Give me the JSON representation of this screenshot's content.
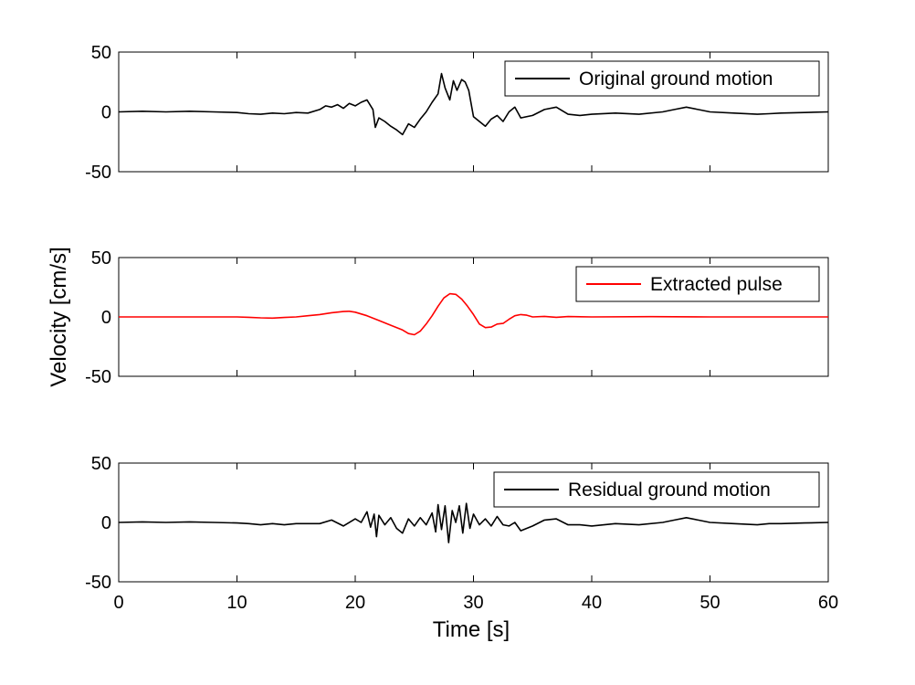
{
  "chart_data": [
    {
      "type": "line",
      "ylim": [
        -50,
        50
      ],
      "xlim": [
        0,
        60
      ],
      "xticks": [
        0,
        10,
        20,
        30,
        40,
        50,
        60
      ],
      "yticks": [
        -50,
        0,
        50
      ],
      "ytick_labels": [
        "-50",
        "0",
        "50"
      ],
      "legend_position": "top-right",
      "series": [
        {
          "name": "Original ground motion",
          "color": "#000000",
          "x": [
            0,
            2,
            4,
            6,
            8,
            10,
            11,
            12,
            13,
            14,
            15,
            16,
            17,
            17.5,
            18,
            18.5,
            19,
            19.5,
            20,
            20.5,
            21,
            21.5,
            21.7,
            22,
            22.5,
            23,
            23.5,
            24,
            24.5,
            25,
            25.5,
            26,
            26.5,
            27,
            27.3,
            27.6,
            28,
            28.3,
            28.6,
            29,
            29.3,
            29.6,
            30,
            30.5,
            31,
            31.5,
            32,
            32.5,
            33,
            33.5,
            34,
            35,
            36,
            37,
            38,
            39,
            40,
            42,
            44,
            46,
            47,
            48,
            49,
            50,
            52,
            54,
            55,
            56,
            58,
            60
          ],
          "y": [
            0,
            0.5,
            0,
            0.5,
            0,
            -0.5,
            -1.5,
            -2,
            -1,
            -1.5,
            -0.5,
            -1,
            2,
            5,
            4,
            6,
            3,
            7,
            5,
            8,
            10,
            2,
            -13,
            -5,
            -8,
            -12,
            -15,
            -19,
            -10,
            -13,
            -6,
            0,
            8,
            15,
            32,
            20,
            10,
            26,
            18,
            27,
            25,
            18,
            -4,
            -8,
            -12,
            -6,
            -3,
            -8,
            0,
            4,
            -5,
            -3,
            2,
            4,
            -2,
            -3,
            -2,
            -1,
            -2,
            0,
            2,
            4,
            2,
            0,
            -1,
            -2,
            -1.5,
            -1,
            -0.5,
            0
          ]
        }
      ]
    },
    {
      "type": "line",
      "ylim": [
        -50,
        50
      ],
      "xlim": [
        0,
        60
      ],
      "xticks": [
        0,
        10,
        20,
        30,
        40,
        50,
        60
      ],
      "yticks": [
        -50,
        0,
        50
      ],
      "ytick_labels": [
        "-50",
        "0",
        "50"
      ],
      "legend_position": "top-right",
      "series": [
        {
          "name": "Extracted pulse",
          "color": "#ff0000",
          "x": [
            0,
            5,
            10,
            11,
            12,
            13,
            14,
            15,
            16,
            17,
            18,
            19,
            19.5,
            20,
            21,
            22,
            23,
            24,
            24.5,
            25,
            25.5,
            26,
            26.5,
            27,
            27.5,
            28,
            28.5,
            29,
            29.5,
            30,
            30.5,
            31,
            31.5,
            32,
            32.5,
            33,
            33.5,
            34,
            34.5,
            35,
            36,
            37,
            38,
            40,
            45,
            50,
            55,
            60
          ],
          "y": [
            0,
            0,
            0,
            -0.3,
            -0.8,
            -1,
            -0.5,
            0,
            1,
            2,
            3.5,
            4.5,
            4.8,
            4,
            1,
            -3,
            -7,
            -11,
            -14,
            -15,
            -12,
            -6,
            1,
            9,
            16,
            19.5,
            19,
            15,
            9,
            2,
            -6,
            -9,
            -8.5,
            -6,
            -5.5,
            -2,
            1,
            2,
            1.5,
            0,
            0.5,
            -0.3,
            0.3,
            0,
            0.2,
            0,
            0,
            0
          ]
        }
      ]
    },
    {
      "type": "line",
      "ylim": [
        -50,
        50
      ],
      "xlim": [
        0,
        60
      ],
      "xticks": [
        0,
        10,
        20,
        30,
        40,
        50,
        60
      ],
      "xtick_labels": [
        "0",
        "10",
        "20",
        "30",
        "40",
        "50",
        "60"
      ],
      "yticks": [
        -50,
        0,
        50
      ],
      "ytick_labels": [
        "-50",
        "0",
        "50"
      ],
      "legend_position": "top-right",
      "series": [
        {
          "name": "Residual ground motion",
          "color": "#000000",
          "x": [
            0,
            2,
            4,
            6,
            8,
            10,
            11,
            12,
            13,
            14,
            15,
            16,
            17,
            18,
            19,
            20,
            20.5,
            21,
            21.3,
            21.6,
            21.8,
            22,
            22.5,
            23,
            23.5,
            24,
            24.5,
            25,
            25.5,
            26,
            26.5,
            26.8,
            27,
            27.3,
            27.6,
            27.9,
            28.2,
            28.5,
            28.8,
            29.1,
            29.4,
            29.7,
            30,
            30.5,
            31,
            31.5,
            32,
            32.5,
            33,
            33.5,
            34,
            35,
            36,
            37,
            38,
            39,
            40,
            42,
            44,
            46,
            47,
            48,
            49,
            50,
            52,
            54,
            55,
            56,
            58,
            60
          ],
          "y": [
            0,
            0.5,
            0,
            0.5,
            0,
            -0.5,
            -1,
            -2,
            -1,
            -2,
            -1,
            -1,
            -1,
            2,
            -3,
            3,
            0,
            9,
            -4,
            7,
            -12,
            6,
            -2,
            4,
            -5,
            -9,
            3,
            -3,
            4,
            -2,
            8,
            -8,
            15,
            -6,
            14,
            -17,
            10,
            0,
            14,
            -9,
            16,
            -5,
            7,
            -2,
            3,
            -3,
            5,
            -2,
            -3,
            0,
            -7,
            -3,
            2,
            3,
            -2,
            -2,
            -3,
            -1,
            -2,
            0,
            2,
            4,
            2,
            0,
            -1,
            -2,
            -1,
            -1,
            -0.5,
            0
          ]
        }
      ]
    }
  ],
  "ylabel": "Velocity [cm/s]",
  "xlabel": "Time [s]"
}
